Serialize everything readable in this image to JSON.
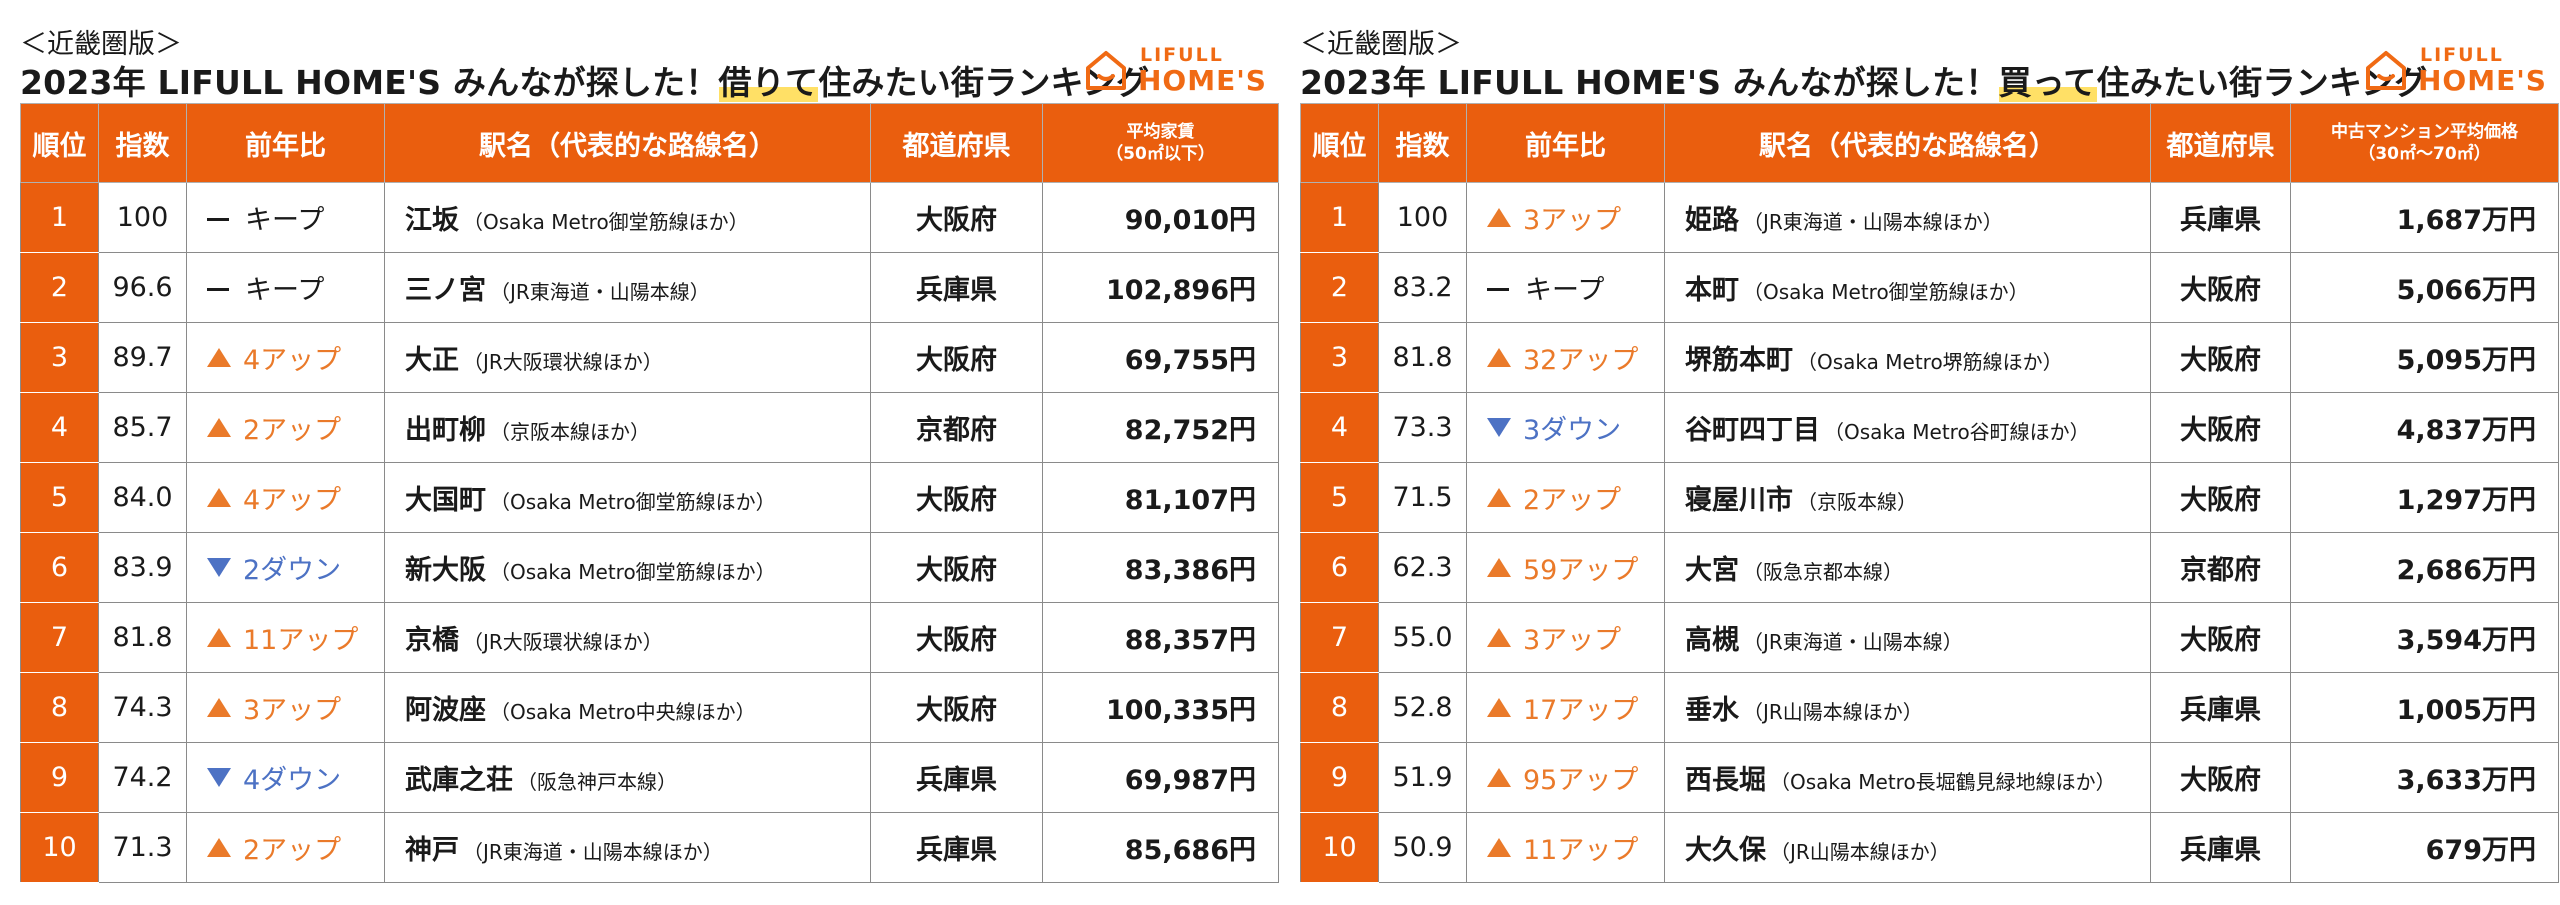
{
  "rent": {
    "region": "＜近畿圏版＞",
    "title_pre": "2023年 LIFULL HOME'S みんなが探した！",
    "title_hl": "借りて",
    "title_post": "住みたい街ランキング",
    "logo_top": "LIFULL",
    "logo_bottom": "HOME'S",
    "headers": [
      "順位",
      "指数",
      "前年比",
      "駅名（代表的な路線名）",
      "都道府県",
      "平均家賃",
      "（50㎡以下）"
    ],
    "rows": [
      {
        "rank": "1",
        "index": "100",
        "change": "キープ",
        "dir": "keep",
        "station": "江坂",
        "line": "（Osaka Metro御堂筋線ほか）",
        "pref": "大阪府",
        "price": "90,010円"
      },
      {
        "rank": "2",
        "index": "96.6",
        "change": "キープ",
        "dir": "keep",
        "station": "三ノ宮",
        "line": "（JR東海道・山陽本線）",
        "pref": "兵庫県",
        "price": "102,896円"
      },
      {
        "rank": "3",
        "index": "89.7",
        "change": "4アップ",
        "dir": "up",
        "station": "大正",
        "line": "（JR大阪環状線ほか）",
        "pref": "大阪府",
        "price": "69,755円"
      },
      {
        "rank": "4",
        "index": "85.7",
        "change": "2アップ",
        "dir": "up",
        "station": "出町柳",
        "line": "（京阪本線ほか）",
        "pref": "京都府",
        "price": "82,752円"
      },
      {
        "rank": "5",
        "index": "84.0",
        "change": "4アップ",
        "dir": "up",
        "station": "大国町",
        "line": "（Osaka Metro御堂筋線ほか）",
        "pref": "大阪府",
        "price": "81,107円"
      },
      {
        "rank": "6",
        "index": "83.9",
        "change": "2ダウン",
        "dir": "down",
        "station": "新大阪",
        "line": "（Osaka Metro御堂筋線ほか）",
        "pref": "大阪府",
        "price": "83,386円"
      },
      {
        "rank": "7",
        "index": "81.8",
        "change": "11アップ",
        "dir": "up",
        "station": "京橋",
        "line": "（JR大阪環状線ほか）",
        "pref": "大阪府",
        "price": "88,357円"
      },
      {
        "rank": "8",
        "index": "74.3",
        "change": "3アップ",
        "dir": "up",
        "station": "阿波座",
        "line": "（Osaka Metro中央線ほか）",
        "pref": "大阪府",
        "price": "100,335円"
      },
      {
        "rank": "9",
        "index": "74.2",
        "change": "4ダウン",
        "dir": "down",
        "station": "武庫之荘",
        "line": "（阪急神戸本線）",
        "pref": "兵庫県",
        "price": "69,987円"
      },
      {
        "rank": "10",
        "index": "71.3",
        "change": "2アップ",
        "dir": "up",
        "station": "神戸",
        "line": "（JR東海道・山陽本線ほか）",
        "pref": "兵庫県",
        "price": "85,686円"
      }
    ]
  },
  "buy": {
    "region": "＜近畿圏版＞",
    "title_pre": "2023年 LIFULL HOME'S みんなが探した！",
    "title_hl": "買って",
    "title_post": "住みたい街ランキング",
    "logo_top": "LIFULL",
    "logo_bottom": "HOME'S",
    "headers": [
      "順位",
      "指数",
      "前年比",
      "駅名（代表的な路線名）",
      "都道府県",
      "中古マンション平均価格",
      "（30㎡～70㎡）"
    ],
    "rows": [
      {
        "rank": "1",
        "index": "100",
        "change": "3アップ",
        "dir": "up",
        "station": "姫路",
        "line": "（JR東海道・山陽本線ほか）",
        "pref": "兵庫県",
        "price": "1,687万円"
      },
      {
        "rank": "2",
        "index": "83.2",
        "change": "キープ",
        "dir": "keep",
        "station": "本町",
        "line": "（Osaka Metro御堂筋線ほか）",
        "pref": "大阪府",
        "price": "5,066万円"
      },
      {
        "rank": "3",
        "index": "81.8",
        "change": "32アップ",
        "dir": "up",
        "station": "堺筋本町",
        "line": "（Osaka Metro堺筋線ほか）",
        "pref": "大阪府",
        "price": "5,095万円"
      },
      {
        "rank": "4",
        "index": "73.3",
        "change": "3ダウン",
        "dir": "down",
        "station": "谷町四丁目",
        "line": "（Osaka Metro谷町線ほか）",
        "pref": "大阪府",
        "price": "4,837万円"
      },
      {
        "rank": "5",
        "index": "71.5",
        "change": "2アップ",
        "dir": "up",
        "station": "寝屋川市",
        "line": "（京阪本線）",
        "pref": "大阪府",
        "price": "1,297万円"
      },
      {
        "rank": "6",
        "index": "62.3",
        "change": "59アップ",
        "dir": "up",
        "station": "大宮",
        "line": "（阪急京都本線）",
        "pref": "京都府",
        "price": "2,686万円"
      },
      {
        "rank": "7",
        "index": "55.0",
        "change": "3アップ",
        "dir": "up",
        "station": "高槻",
        "line": "（JR東海道・山陽本線）",
        "pref": "大阪府",
        "price": "3,594万円"
      },
      {
        "rank": "8",
        "index": "52.8",
        "change": "17アップ",
        "dir": "up",
        "station": "垂水",
        "line": "（JR山陽本線ほか）",
        "pref": "兵庫県",
        "price": "1,005万円"
      },
      {
        "rank": "9",
        "index": "51.9",
        "change": "95アップ",
        "dir": "up",
        "station": "西長堀",
        "line": "（Osaka Metro長堀鶴見緑地線ほか）",
        "pref": "大阪府",
        "price": "3,633万円"
      },
      {
        "rank": "10",
        "index": "50.9",
        "change": "11アップ",
        "dir": "up",
        "station": "大久保",
        "line": "（JR山陽本線ほか）",
        "pref": "兵庫県",
        "price": "679万円"
      }
    ]
  }
}
